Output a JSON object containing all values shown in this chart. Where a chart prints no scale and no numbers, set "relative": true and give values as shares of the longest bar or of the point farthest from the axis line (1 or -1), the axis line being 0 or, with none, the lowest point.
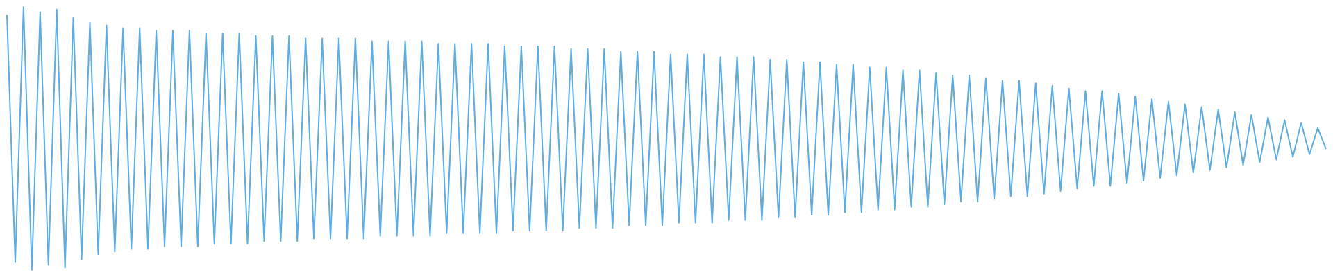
{
  "chart_data": {
    "type": "line",
    "relative": true,
    "color": "#5dade2",
    "legend": false,
    "marker": "none",
    "categories": [
      null,
      null,
      null,
      null,
      null,
      null,
      null,
      null,
      null,
      null,
      null,
      null,
      null,
      null,
      null,
      null,
      null,
      null,
      null,
      null,
      null,
      null,
      null,
      null,
      null,
      null,
      null,
      null,
      null,
      null,
      null,
      null,
      null,
      null,
      null,
      null,
      null,
      null,
      null,
      null,
      null,
      null,
      null,
      null,
      null,
      null,
      null,
      null,
      null,
      null,
      null,
      null,
      null,
      null,
      null,
      null,
      null,
      null,
      null,
      null,
      null,
      null,
      null,
      null,
      null,
      null,
      null,
      null,
      null,
      null,
      null,
      null,
      null,
      null,
      null,
      null,
      null,
      null,
      null,
      null,
      null,
      null,
      null,
      null,
      null,
      null,
      null,
      null,
      null,
      null,
      null,
      null,
      null,
      null,
      null,
      null,
      null,
      null,
      null,
      null,
      null,
      null,
      null,
      null,
      null,
      null,
      null,
      null,
      null,
      null,
      null,
      null,
      null,
      null,
      null,
      null,
      null,
      null,
      null,
      null,
      null,
      null,
      null,
      null,
      null,
      null,
      null,
      null,
      null,
      null,
      null,
      null,
      null,
      null,
      null,
      null,
      null,
      null,
      null,
      null,
      null,
      null,
      null,
      null,
      null,
      null,
      null,
      null,
      null,
      null,
      null,
      null,
      null,
      null,
      null,
      null,
      null,
      null,
      null,
      null
    ],
    "values": [
      0.97,
      0.03,
      1.0,
      0.0,
      0.98,
      0.02,
      0.99,
      0.01,
      0.96,
      0.04,
      0.94,
      0.06,
      0.93,
      0.07,
      0.92,
      0.08,
      0.92,
      0.08,
      0.91,
      0.09,
      0.91,
      0.09,
      0.91,
      0.09,
      0.9,
      0.1,
      0.9,
      0.1,
      0.9,
      0.1,
      0.89,
      0.11,
      0.89,
      0.11,
      0.89,
      0.11,
      0.88,
      0.12,
      0.88,
      0.12,
      0.88,
      0.12,
      0.88,
      0.12,
      0.87,
      0.13,
      0.87,
      0.13,
      0.87,
      0.13,
      0.87,
      0.13,
      0.86,
      0.14,
      0.86,
      0.14,
      0.86,
      0.14,
      0.86,
      0.14,
      0.85,
      0.15,
      0.85,
      0.15,
      0.85,
      0.15,
      0.85,
      0.15,
      0.84,
      0.16,
      0.84,
      0.16,
      0.84,
      0.16,
      0.83,
      0.17,
      0.83,
      0.17,
      0.83,
      0.17,
      0.82,
      0.18,
      0.82,
      0.18,
      0.82,
      0.18,
      0.81,
      0.19,
      0.81,
      0.19,
      0.81,
      0.19,
      0.8,
      0.2,
      0.8,
      0.2,
      0.79,
      0.21,
      0.79,
      0.21,
      0.78,
      0.22,
      0.78,
      0.22,
      0.77,
      0.23,
      0.77,
      0.23,
      0.76,
      0.24,
      0.76,
      0.24,
      0.75,
      0.25,
      0.74,
      0.26,
      0.74,
      0.26,
      0.73,
      0.27,
      0.72,
      0.28,
      0.72,
      0.28,
      0.71,
      0.29,
      0.7,
      0.3,
      0.69,
      0.31,
      0.68,
      0.32,
      0.68,
      0.32,
      0.67,
      0.33,
      0.66,
      0.34,
      0.65,
      0.35,
      0.64,
      0.36,
      0.63,
      0.37,
      0.62,
      0.38,
      0.61,
      0.39,
      0.6,
      0.4,
      0.59,
      0.41,
      0.58,
      0.42,
      0.57,
      0.43,
      0.56,
      0.44,
      0.54,
      0.46
    ]
  }
}
